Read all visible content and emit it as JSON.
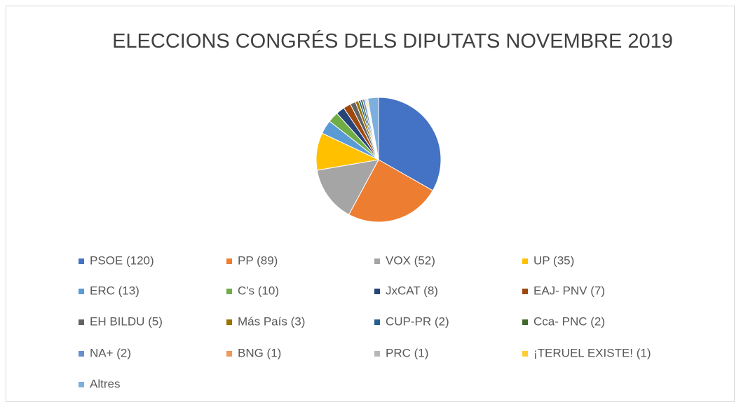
{
  "chart_data": {
    "type": "pie",
    "title": "ELECCIONS CONGRÉS DELS DIPUTATS NOVEMBRE 2019",
    "categories": [
      "PSOE (120)",
      "PP (89)",
      "VOX (52)",
      "UP  (35)",
      "ERC (13)",
      "C's (10)",
      "JxCAT (8)",
      "EAJ- PNV (7)",
      "EH BILDU (5)",
      "Más País (3)",
      "CUP-PR (2)",
      "Cca- PNC (2)",
      "NA+ (2)",
      "BNG (1)",
      "PRC (1)",
      "¡TERUEL EXISTE! (1)",
      "Altres"
    ],
    "values": [
      120,
      89,
      52,
      35,
      13,
      10,
      8,
      7,
      5,
      3,
      2,
      2,
      2,
      1,
      1,
      1,
      10
    ],
    "colors": [
      "#4472c4",
      "#ed7d31",
      "#a5a5a5",
      "#ffc000",
      "#5b9bd5",
      "#70ad47",
      "#264478",
      "#9e480e",
      "#636363",
      "#997300",
      "#255e91",
      "#43682b",
      "#698ed0",
      "#f1975a",
      "#b7b7b7",
      "#ffcd33",
      "#7cafdd"
    ],
    "legend": "bottom"
  }
}
